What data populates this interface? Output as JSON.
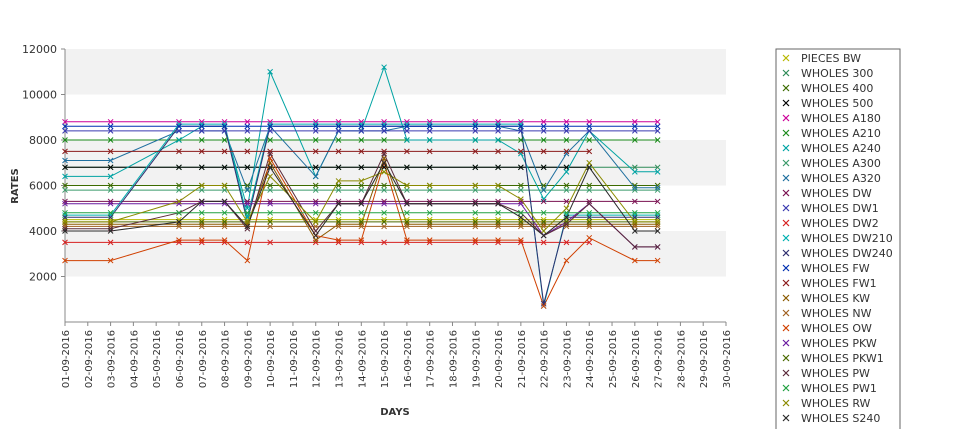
{
  "chart_data": {
    "type": "line",
    "title": "",
    "xlabel": "DAYS",
    "ylabel": "RATES",
    "ylim": [
      0,
      12000
    ],
    "yticks": [
      2000,
      4000,
      6000,
      8000,
      10000,
      12000
    ],
    "grid": "alternating horizontal bands",
    "legend_position": "right",
    "categories": [
      "01-09-2016",
      "02-09-2016",
      "03-09-2016",
      "04-09-2016",
      "05-09-2016",
      "06-09-2016",
      "07-09-2016",
      "08-09-2016",
      "09-09-2016",
      "10-09-2016",
      "11-09-2016",
      "12-09-2016",
      "13-09-2016",
      "14-09-2016",
      "15-09-2016",
      "16-09-2016",
      "17-09-2016",
      "18-09-2016",
      "19-09-2016",
      "20-09-2016",
      "21-09-2016",
      "22-09-2016",
      "23-09-2016",
      "24-09-2016",
      "25-09-2016",
      "26-09-2016",
      "27-09-2016",
      "28-09-2016",
      "29-09-2016",
      "30-09-2016"
    ],
    "series": [
      {
        "name": "PIECES BW",
        "color": "#b8b800",
        "values": [
          4500,
          null,
          4500,
          null,
          null,
          4500,
          4500,
          4500,
          4500,
          4500,
          null,
          4500,
          4500,
          4500,
          4500,
          4500,
          4500,
          null,
          4500,
          4500,
          4500,
          4500,
          4500,
          4500,
          null,
          4500,
          4500,
          null,
          null,
          null
        ]
      },
      {
        "name": "WHOLES 300",
        "color": "#2e8b57",
        "values": [
          6800,
          null,
          6800,
          null,
          null,
          6800,
          6800,
          6800,
          6800,
          6800,
          null,
          6800,
          6800,
          6800,
          6800,
          6800,
          6800,
          null,
          6800,
          6800,
          6800,
          6800,
          6800,
          6800,
          null,
          6800,
          6800,
          null,
          null,
          null
        ]
      },
      {
        "name": "WHOLES 400",
        "color": "#3d6b00",
        "values": [
          6000,
          null,
          6000,
          null,
          null,
          6000,
          6000,
          6000,
          6000,
          6000,
          null,
          6000,
          6000,
          6000,
          6000,
          6000,
          6000,
          null,
          6000,
          6000,
          6000,
          6000,
          6000,
          6000,
          null,
          6000,
          6000,
          null,
          null,
          null
        ]
      },
      {
        "name": "WHOLES 500",
        "color": "#000000",
        "values": [
          6800,
          null,
          6800,
          null,
          null,
          6800,
          6800,
          6800,
          6800,
          6800,
          null,
          6800,
          6800,
          6800,
          6800,
          6800,
          6800,
          null,
          6800,
          6800,
          6800,
          6800,
          6800,
          6800,
          null,
          null,
          null,
          null,
          null,
          null
        ]
      },
      {
        "name": "WHOLES A180",
        "color": "#cc0099",
        "values": [
          8800,
          null,
          8800,
          null,
          null,
          8800,
          8800,
          8800,
          8800,
          8800,
          null,
          8800,
          8800,
          8800,
          8800,
          8800,
          8800,
          null,
          8800,
          8800,
          8800,
          8800,
          8800,
          8800,
          null,
          8800,
          8800,
          null,
          null,
          null
        ]
      },
      {
        "name": "WHOLES A210",
        "color": "#1a8a1a",
        "values": [
          8000,
          null,
          8000,
          null,
          null,
          8000,
          8000,
          8000,
          8000,
          8000,
          null,
          8000,
          8000,
          8000,
          8000,
          8000,
          8000,
          null,
          8000,
          8000,
          8000,
          8000,
          8000,
          8000,
          null,
          8000,
          8000,
          null,
          null,
          null
        ]
      },
      {
        "name": "WHOLES A240",
        "color": "#00a3a3",
        "values": [
          6400,
          null,
          6400,
          null,
          null,
          8000,
          8600,
          8600,
          5000,
          11000,
          null,
          6400,
          8400,
          8400,
          11200,
          8000,
          8000,
          null,
          8000,
          8000,
          7400,
          5400,
          6600,
          8400,
          null,
          6600,
          6600,
          null,
          null,
          null
        ]
      },
      {
        "name": "WHOLES A300",
        "color": "#3a9a6a",
        "values": [
          5800,
          null,
          5800,
          null,
          null,
          5800,
          5800,
          5800,
          5800,
          5800,
          null,
          5800,
          5800,
          5800,
          5800,
          5800,
          5800,
          null,
          5800,
          5800,
          5800,
          5800,
          5800,
          5800,
          null,
          5800,
          5800,
          null,
          null,
          null
        ]
      },
      {
        "name": "WHOLES A320",
        "color": "#1f6f9f",
        "values": [
          7100,
          null,
          7100,
          null,
          null,
          8400,
          8400,
          8400,
          5800,
          8600,
          null,
          6400,
          8400,
          8400,
          8400,
          8600,
          8600,
          null,
          8600,
          8600,
          8400,
          5800,
          7400,
          8400,
          null,
          5900,
          5900,
          null,
          null,
          null
        ]
      },
      {
        "name": "WHOLES DW",
        "color": "#7a1050",
        "values": [
          5300,
          null,
          5300,
          null,
          null,
          5300,
          5300,
          5300,
          5300,
          5300,
          null,
          5300,
          5300,
          5300,
          5300,
          5300,
          5300,
          null,
          5300,
          5300,
          5300,
          5300,
          5300,
          5300,
          null,
          5300,
          5300,
          null,
          null,
          null
        ]
      },
      {
        "name": "WHOLES DW1",
        "color": "#3a3ab0",
        "values": [
          8400,
          null,
          8400,
          null,
          null,
          8400,
          8400,
          8400,
          8400,
          8400,
          null,
          8400,
          8400,
          8400,
          8400,
          8400,
          8400,
          null,
          8400,
          8400,
          8400,
          8400,
          8400,
          8400,
          null,
          8400,
          8400,
          null,
          null,
          null
        ]
      },
      {
        "name": "WHOLES DW2",
        "color": "#d62020",
        "values": [
          3500,
          null,
          3500,
          null,
          null,
          3500,
          3500,
          3500,
          3500,
          3500,
          null,
          3500,
          3500,
          3500,
          3500,
          3500,
          3500,
          null,
          3500,
          3500,
          3500,
          3500,
          3500,
          3500,
          null,
          null,
          null,
          null,
          null,
          null
        ]
      },
      {
        "name": "WHOLES DW210",
        "color": "#00b0b0",
        "values": [
          4700,
          null,
          4700,
          null,
          null,
          8700,
          8700,
          8700,
          4600,
          8700,
          null,
          8700,
          8700,
          8700,
          8700,
          8700,
          8700,
          null,
          8700,
          8700,
          8700,
          700,
          4700,
          4700,
          null,
          4700,
          4700,
          null,
          null,
          null
        ]
      },
      {
        "name": "WHOLES DW240",
        "color": "#303070",
        "values": [
          4600,
          null,
          4600,
          null,
          null,
          8600,
          8600,
          8600,
          4400,
          8600,
          null,
          8600,
          8600,
          8600,
          8600,
          8600,
          8600,
          null,
          8600,
          8600,
          8600,
          800,
          4600,
          4600,
          null,
          4600,
          4600,
          null,
          null,
          null
        ]
      },
      {
        "name": "WHOLES FW",
        "color": "#0030b0",
        "values": [
          8600,
          null,
          8600,
          null,
          null,
          8600,
          8600,
          8600,
          8600,
          8600,
          null,
          8600,
          8600,
          8600,
          8600,
          8600,
          8600,
          null,
          8600,
          8600,
          8600,
          8600,
          8600,
          8600,
          null,
          8600,
          8600,
          null,
          null,
          null
        ]
      },
      {
        "name": "WHOLES FW1",
        "color": "#8b1a1a",
        "values": [
          7500,
          null,
          7500,
          null,
          null,
          7500,
          7500,
          7500,
          7500,
          7500,
          null,
          7500,
          7500,
          7500,
          7500,
          7500,
          7500,
          null,
          7500,
          7500,
          7500,
          7500,
          7500,
          7500,
          null,
          null,
          null,
          null,
          null,
          null
        ]
      },
      {
        "name": "WHOLES KW",
        "color": "#8b5a00",
        "values": [
          4300,
          null,
          4300,
          null,
          null,
          4300,
          4300,
          4300,
          4300,
          7000,
          null,
          3600,
          4300,
          4300,
          7200,
          4300,
          4300,
          null,
          4300,
          4300,
          4300,
          4300,
          4300,
          4300,
          null,
          4300,
          4300,
          null,
          null,
          null
        ]
      },
      {
        "name": "WHOLES NW",
        "color": "#a06020",
        "values": [
          4200,
          null,
          4200,
          null,
          null,
          4200,
          4200,
          4200,
          4200,
          4200,
          null,
          4200,
          4200,
          4200,
          4200,
          4200,
          4200,
          null,
          4200,
          4200,
          4200,
          4200,
          4200,
          4200,
          null,
          4200,
          4200,
          null,
          null,
          null
        ]
      },
      {
        "name": "WHOLES OW",
        "color": "#d04000",
        "values": [
          2700,
          null,
          2700,
          null,
          null,
          3600,
          3600,
          3600,
          2700,
          7200,
          null,
          3800,
          3600,
          3600,
          7000,
          3600,
          3600,
          null,
          3600,
          3600,
          3600,
          700,
          2700,
          3700,
          null,
          2700,
          2700,
          null,
          null,
          null
        ]
      },
      {
        "name": "WHOLES PKW",
        "color": "#6a1aa0",
        "values": [
          5200,
          null,
          5200,
          null,
          null,
          5200,
          5200,
          5200,
          5200,
          5200,
          null,
          5200,
          5200,
          5200,
          5200,
          5200,
          5200,
          null,
          5200,
          5200,
          5200,
          3800,
          4400,
          5200,
          null,
          3300,
          3300,
          null,
          null,
          null
        ]
      },
      {
        "name": "WHOLES PKW1",
        "color": "#4a6a00",
        "values": [
          4400,
          null,
          4400,
          null,
          null,
          4400,
          4400,
          4400,
          4400,
          4400,
          null,
          4400,
          4400,
          4400,
          4400,
          4400,
          4400,
          null,
          4400,
          4400,
          4400,
          4400,
          4400,
          4400,
          null,
          4400,
          4400,
          null,
          null,
          null
        ]
      },
      {
        "name": "WHOLES PW",
        "color": "#5a2a3a",
        "values": [
          4100,
          null,
          4100,
          null,
          null,
          4800,
          5300,
          5300,
          4100,
          7400,
          null,
          4000,
          5200,
          5200,
          7400,
          5200,
          5200,
          null,
          5200,
          5200,
          4800,
          3800,
          4300,
          5200,
          null,
          3300,
          3300,
          null,
          null,
          null
        ]
      },
      {
        "name": "WHOLES PW1",
        "color": "#20a040",
        "values": [
          4800,
          null,
          4800,
          null,
          null,
          4800,
          4800,
          4800,
          4800,
          4800,
          null,
          4800,
          4800,
          4800,
          4800,
          4800,
          4800,
          null,
          4800,
          4800,
          4800,
          4800,
          4800,
          4800,
          null,
          4800,
          4800,
          null,
          null,
          null
        ]
      },
      {
        "name": "WHOLES RW",
        "color": "#8a8a00",
        "values": [
          4400,
          null,
          4400,
          null,
          null,
          5300,
          6000,
          6000,
          4400,
          6400,
          null,
          4400,
          6200,
          6200,
          6600,
          6000,
          6000,
          null,
          6000,
          6000,
          5400,
          4000,
          5000,
          7000,
          null,
          4400,
          4400,
          null,
          null,
          null
        ]
      },
      {
        "name": "WHOLES S240",
        "color": "#2a2a2a",
        "values": [
          4000,
          null,
          4000,
          null,
          null,
          4400,
          5300,
          5300,
          4200,
          6800,
          null,
          3800,
          5200,
          5200,
          7000,
          5200,
          5200,
          null,
          5200,
          5200,
          4600,
          3800,
          4600,
          6800,
          null,
          4000,
          4000,
          null,
          null,
          null
        ]
      }
    ]
  }
}
